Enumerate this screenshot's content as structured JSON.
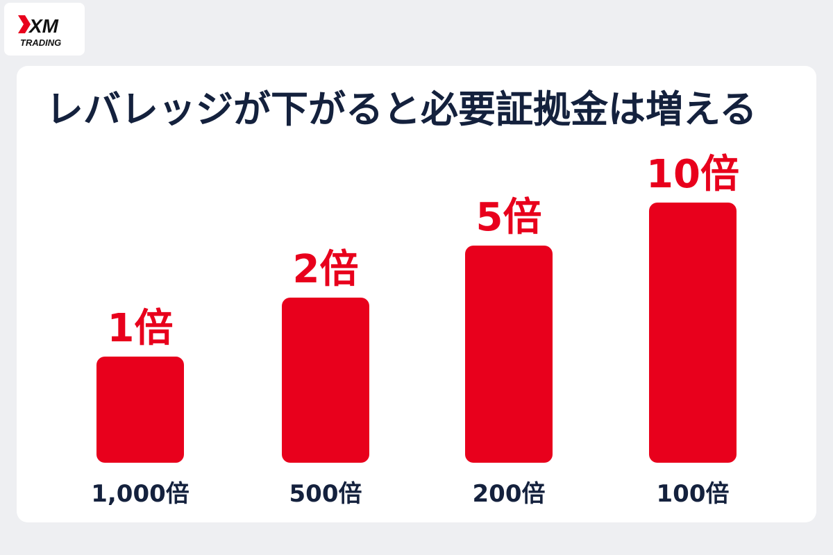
{
  "logo": {
    "brand_top": "XM",
    "brand_bottom": "TRADING"
  },
  "colors": {
    "bar": "#e8001c",
    "title": "#14213d",
    "background": "#eeeff2",
    "card": "#ffffff"
  },
  "chart_data": {
    "type": "bar",
    "title": "レバレッジが下がると必要証拠金は増える",
    "categories": [
      "1,000倍",
      "500倍",
      "200倍",
      "100倍"
    ],
    "values": [
      1,
      2,
      5,
      10
    ],
    "value_labels": [
      "1倍",
      "2倍",
      "5倍",
      "10倍"
    ],
    "xlabel": "",
    "ylabel": "",
    "grid": false,
    "legend": "none"
  }
}
